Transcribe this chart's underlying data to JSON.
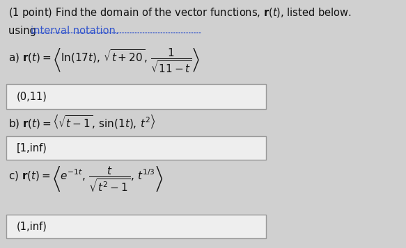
{
  "bg_color": "#d0d0d0",
  "title_line1": "(1 point) Find the domain of the vector functions, $\\mathbf{r}(t)$, listed below.",
  "title_line2_prefix": "using ",
  "title_line2_link": "interval notation.",
  "title_fontsize": 10.5,
  "part_a_eq": "a) $\\mathbf{r}(t) = \\left\\langle \\ln(17t),\\, \\sqrt{t+20},\\, \\dfrac{1}{\\sqrt{11-t}} \\right\\rangle$",
  "part_a_ans": "(0,11)",
  "part_b_eq": "b) $\\mathbf{r}(t) = \\left\\langle \\sqrt{t-1},\\, \\sin(1t),\\, t^2 \\right\\rangle$",
  "part_b_ans": "[1,inf)",
  "part_c_eq": "c) $\\mathbf{r}(t) = \\left\\langle e^{-1t},\\, \\dfrac{t}{\\sqrt{t^2-1}},\\, t^{1/3} \\right\\rangle$",
  "part_c_ans": "(1,inf)",
  "eq_fontsize": 11,
  "ans_fontsize": 10.5,
  "box_facecolor": "#eeeeee",
  "box_edgecolor": "#999999",
  "underline_color": "#3355cc",
  "text_color": "#111111"
}
